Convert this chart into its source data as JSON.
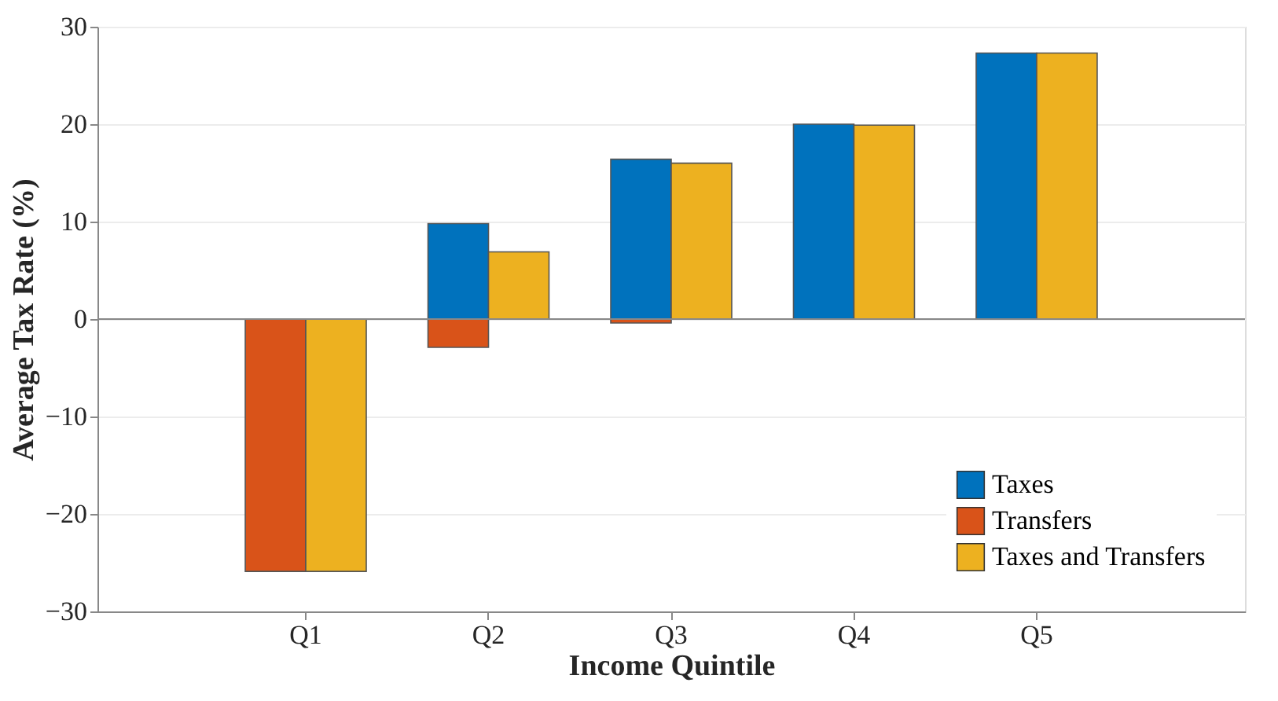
{
  "chart_data": {
    "type": "bar",
    "xlabel": "Income Quintile",
    "ylabel": "Average Tax Rate (%)",
    "categories": [
      "Q1",
      "Q2",
      "Q3",
      "Q4",
      "Q5"
    ],
    "series": [
      {
        "name": "Taxes",
        "color": "#0072bd",
        "values": [
          null,
          9.8,
          16.4,
          20.0,
          27.3
        ]
      },
      {
        "name": "Transfers",
        "color": "#d95319",
        "values": [
          -25.9,
          -2.9,
          -0.4,
          null,
          null
        ]
      },
      {
        "name": "Taxes and Transfers",
        "color": "#edb120",
        "values": [
          -25.9,
          6.9,
          16.0,
          19.9,
          27.3
        ]
      }
    ],
    "ylim": [
      -30,
      30
    ],
    "yticks": [
      -30,
      -20,
      -10,
      0,
      10,
      20,
      30
    ],
    "grid": "y",
    "legend": "bottom right",
    "ref_lines": [
      {
        "axis": "y",
        "value": 0,
        "color": "#888888"
      }
    ]
  }
}
